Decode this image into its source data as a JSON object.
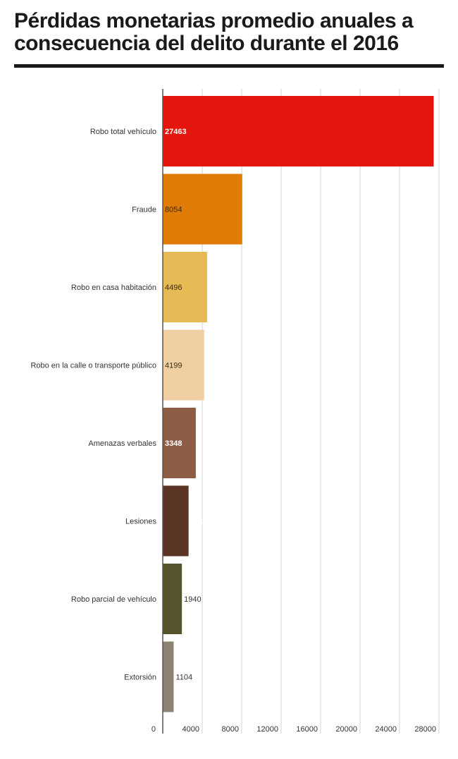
{
  "title": "Pérdidas monetarias promedio anuales a consecuencia del delito durante el 2016",
  "chart_data": {
    "type": "bar",
    "orientation": "horizontal",
    "title": "Pérdidas monetarias promedio anuales a consecuencia del delito durante el 2016",
    "categories": [
      "Robo total vehículo",
      "Fraude",
      "Robo en casa habitación",
      "Robo en la calle o transporte público",
      "Amenazas verbales",
      "Lesiones",
      "Robo parcial de vehículo",
      "Extorsión"
    ],
    "values": [
      27463,
      8054,
      4496,
      4199,
      3348,
      2616,
      1940,
      1104
    ],
    "colors": [
      "#e3150d",
      "#e07b05",
      "#e6bb55",
      "#f0cfa2",
      "#8d5d47",
      "#5a3526",
      "#56532f",
      "#8d8273"
    ],
    "value_label_colors": [
      "#ffffff",
      "#3a2a10",
      "#3a2a10",
      "#3a2a10",
      "#ffffff",
      "#ffffff",
      "#333333",
      "#333333"
    ],
    "xlim": [
      0,
      28000
    ],
    "xticks": [
      0,
      4000,
      8000,
      12000,
      16000,
      20000,
      24000,
      28000
    ],
    "grid": true
  }
}
